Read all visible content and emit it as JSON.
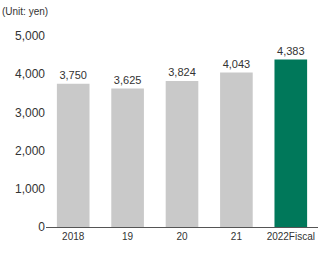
{
  "chart_data": {
    "type": "bar",
    "ylabel": "(Unit: yen)",
    "categories": [
      "2018",
      "19",
      "20",
      "21",
      "2022Fiscal"
    ],
    "values": [
      3750,
      3625,
      3824,
      4043,
      4383
    ],
    "value_labels": [
      "3,750",
      "3,625",
      "3,824",
      "4,043",
      "4,383"
    ],
    "colors": [
      "#c9c9c9",
      "#c9c9c9",
      "#c9c9c9",
      "#c9c9c9",
      "#00785a"
    ],
    "ylim": [
      0,
      5000
    ],
    "yticks": [
      {
        "value": 0,
        "label": "0"
      },
      {
        "value": 1000,
        "label": "1,000"
      },
      {
        "value": 2000,
        "label": "2,000"
      },
      {
        "value": 3000,
        "label": "3,000"
      },
      {
        "value": 4000,
        "label": "4,000"
      },
      {
        "value": 5000,
        "label": "5,000"
      }
    ],
    "grid": false,
    "data_labels": true
  }
}
